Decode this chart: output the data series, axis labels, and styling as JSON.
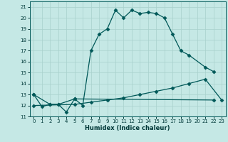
{
  "xlabel": "Humidex (Indice chaleur)",
  "background_color": "#c5e8e5",
  "grid_color": "#a8d0cc",
  "line_color": "#005858",
  "xlim": [
    -0.5,
    23.5
  ],
  "ylim": [
    11,
    21.5
  ],
  "yticks": [
    11,
    12,
    13,
    14,
    15,
    16,
    17,
    18,
    19,
    20,
    21
  ],
  "xticks": [
    0,
    1,
    2,
    3,
    4,
    5,
    6,
    7,
    8,
    9,
    10,
    11,
    12,
    13,
    14,
    15,
    16,
    17,
    18,
    19,
    20,
    21,
    22,
    23
  ],
  "curve1_x": [
    0,
    1,
    2,
    3,
    4,
    5,
    6,
    7,
    8,
    9,
    10,
    11,
    12,
    13,
    14,
    15,
    16,
    17,
    18,
    19,
    21,
    22
  ],
  "curve1_y": [
    13.0,
    11.9,
    12.1,
    12.1,
    11.4,
    12.6,
    12.0,
    17.0,
    18.5,
    19.0,
    20.7,
    20.0,
    20.7,
    20.4,
    20.5,
    20.4,
    20.0,
    18.5,
    17.0,
    16.6,
    15.5,
    15.1
  ],
  "curve2_x": [
    0,
    2,
    3,
    5,
    22
  ],
  "curve2_y": [
    13.0,
    12.1,
    12.1,
    12.6,
    12.5
  ],
  "curve3_x": [
    0,
    5,
    7,
    9,
    11,
    13,
    15,
    17,
    19,
    21,
    23
  ],
  "curve3_y": [
    12.0,
    12.1,
    12.3,
    12.5,
    12.7,
    13.0,
    13.3,
    13.6,
    14.0,
    14.4,
    12.5
  ]
}
